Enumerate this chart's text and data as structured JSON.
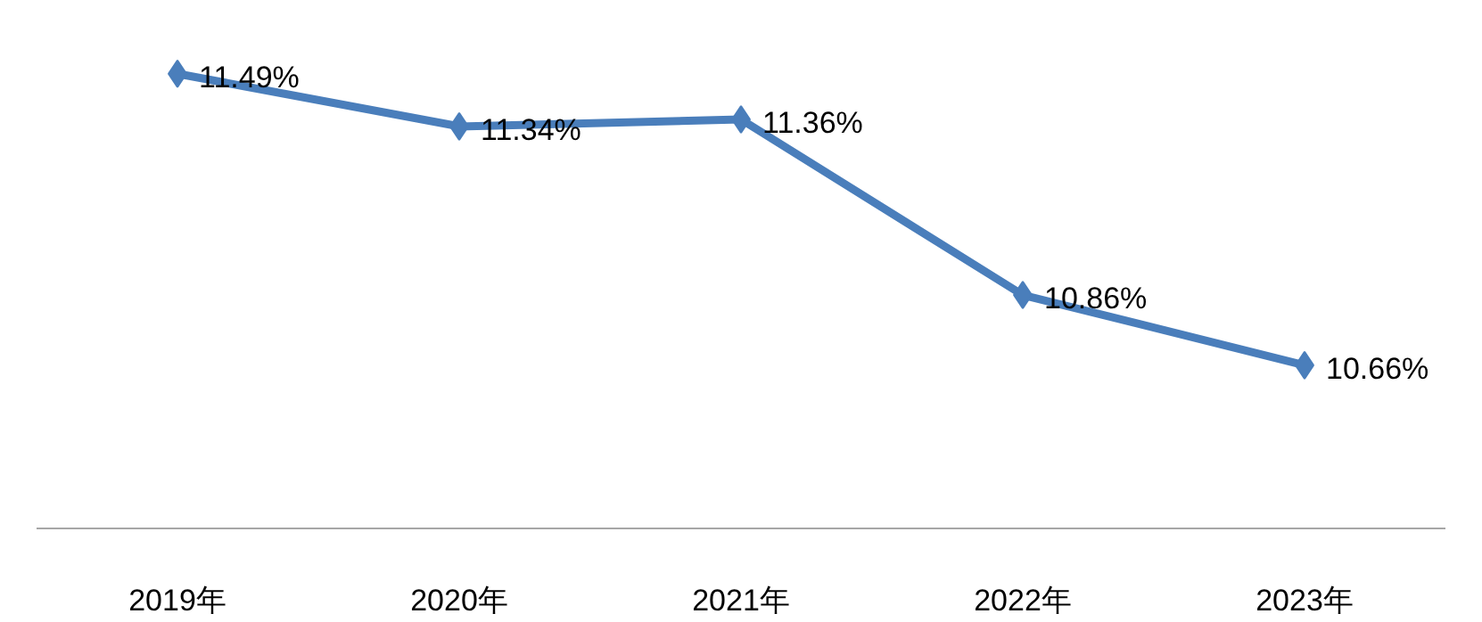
{
  "chart_data": {
    "type": "line",
    "categories": [
      "2019年",
      "2020年",
      "2021年",
      "2022年",
      "2023年"
    ],
    "series": [
      {
        "color": "#4a7ebb",
        "values": [
          11.49,
          11.34,
          11.36,
          10.86,
          10.66
        ],
        "value_labels": [
          "11.49%",
          "11.34%",
          "11.36%",
          "10.86%",
          "10.66%"
        ]
      }
    ],
    "marker": "diamond",
    "line_style": "solid",
    "grid": false,
    "tick_labels": "x"
  }
}
